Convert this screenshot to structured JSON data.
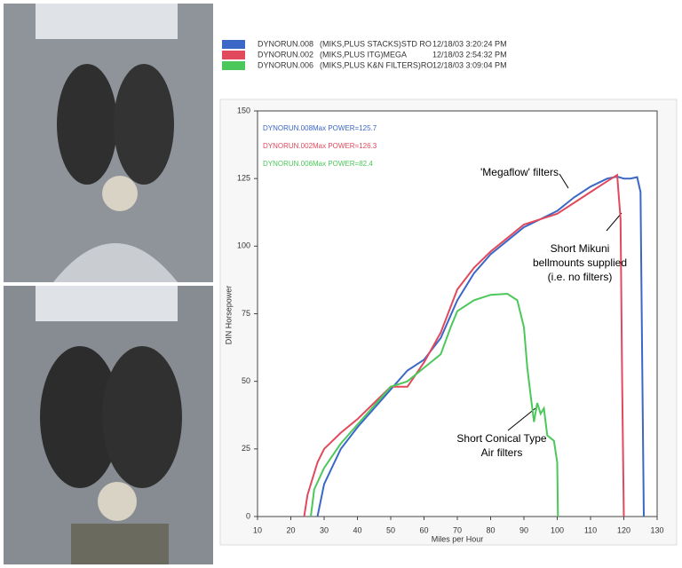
{
  "chart_data": {
    "type": "line",
    "xlabel": "Miles per Hour",
    "ylabel": "DIN Horsepower",
    "xlim": [
      10,
      130
    ],
    "ylim": [
      0,
      150
    ],
    "xticks": [
      10,
      20,
      30,
      40,
      50,
      60,
      70,
      80,
      90,
      100,
      110,
      120,
      130
    ],
    "yticks": [
      0,
      25,
      50,
      75,
      100,
      125,
      150
    ],
    "annotations": [
      [
        "'Megaflow' filters"
      ],
      [
        "Short Mikuni",
        "bellmounts supplied",
        "(i.e. no filters)"
      ],
      [
        "Short Conical Type",
        "Air filters"
      ]
    ],
    "series": [
      {
        "name": "DYNORUN.008",
        "description": "(MIKS,PLUS STACKS)STD RO",
        "timestamp": "12/18/03 3:20:24 PM",
        "max_power": "Max POWER=125.7",
        "color": "#3b67c6",
        "x": [
          28,
          30,
          35,
          40,
          45,
          50,
          55,
          60,
          65,
          70,
          75,
          80,
          85,
          90,
          95,
          100,
          105,
          110,
          115,
          118,
          120,
          122,
          124,
          125,
          125.5,
          126
        ],
        "values": [
          0,
          12,
          25,
          33,
          40,
          47,
          54,
          58,
          66,
          80,
          90,
          97,
          102,
          107,
          110,
          113,
          118,
          122,
          125,
          125.7,
          125,
          125,
          125.5,
          120,
          60,
          0
        ]
      },
      {
        "name": "DYNORUN.002",
        "description": "(MIKS,PLUS ITG)MEGA",
        "timestamp": "12/18/03 2:54:32 PM",
        "max_power": "Max POWER=126.3",
        "color": "#e04a5c",
        "x": [
          24,
          25,
          28,
          30,
          35,
          40,
          45,
          50,
          55,
          60,
          65,
          70,
          75,
          80,
          85,
          90,
          95,
          100,
          105,
          110,
          115,
          118,
          119,
          119.5,
          120
        ],
        "values": [
          0,
          8,
          20,
          25,
          31,
          36,
          42,
          48,
          48,
          57,
          68,
          84,
          92,
          98,
          103,
          108,
          110,
          112,
          116,
          120,
          124,
          126.3,
          110,
          50,
          0
        ]
      },
      {
        "name": "DYNORUN.006",
        "description": "(MIKS,PLUS K&N FILTERS)RO",
        "timestamp": "12/18/03 3:09:04 PM",
        "max_power": "Max POWER=82.4",
        "color": "#4cc85a",
        "x": [
          26,
          27,
          30,
          35,
          40,
          45,
          50,
          55,
          60,
          65,
          68,
          70,
          75,
          80,
          85,
          88,
          90,
          91,
          92,
          93,
          94,
          95,
          96,
          97,
          99,
          100,
          100.2
        ],
        "values": [
          0,
          10,
          18,
          27,
          34,
          41,
          48,
          50,
          55,
          60,
          70,
          76,
          80,
          82,
          82.4,
          80,
          70,
          55,
          45,
          35,
          42,
          38,
          40,
          30,
          28,
          20,
          0
        ]
      }
    ]
  }
}
